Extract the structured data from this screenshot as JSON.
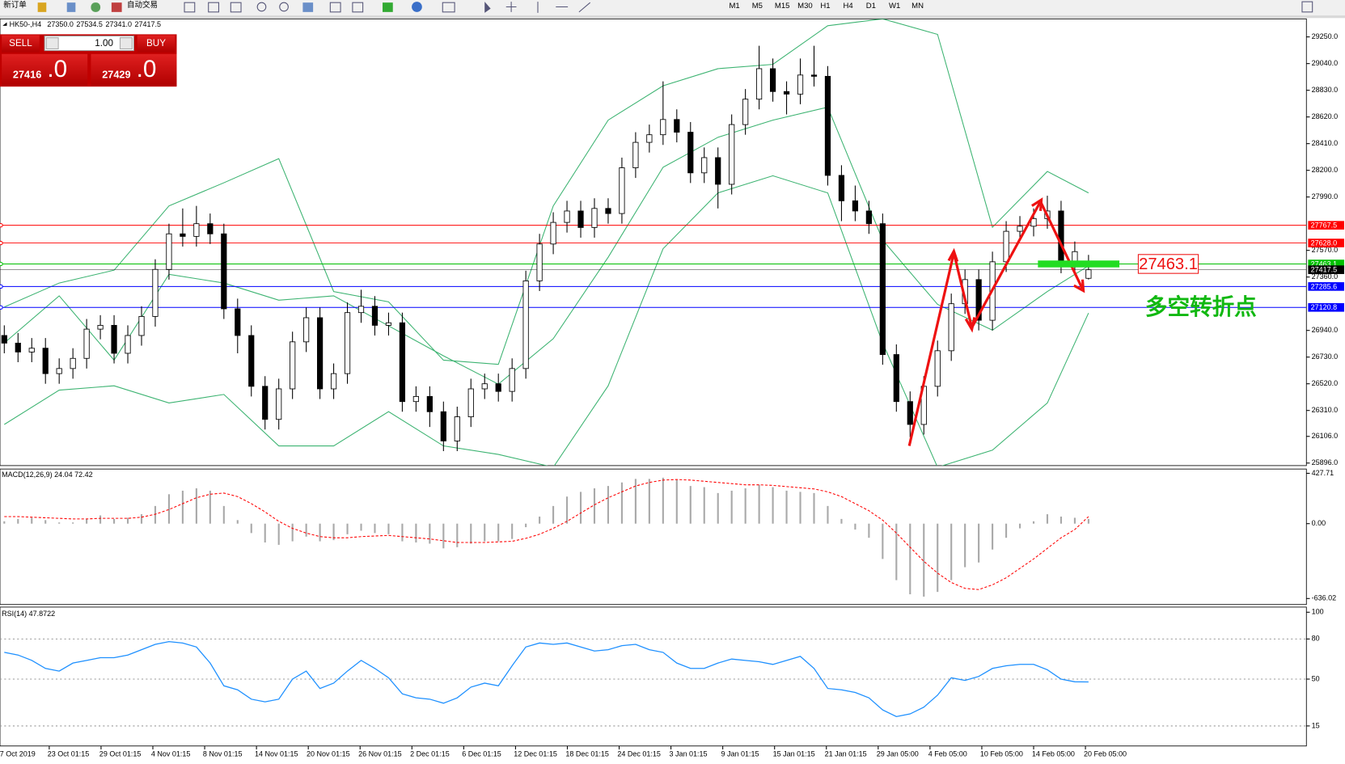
{
  "toolbar": {
    "buttons": [
      "新订单",
      "自动交易"
    ],
    "timeframes": [
      "M1",
      "M5",
      "M15",
      "M30",
      "H1",
      "H4",
      "D1",
      "W1",
      "MN"
    ]
  },
  "trade_panel": {
    "sell": "SELL",
    "buy": "BUY",
    "lots": "1.00",
    "bid_main": "27416",
    "bid_frac": ".0",
    "ask_main": "27429",
    "ask_frac": ".0"
  },
  "chart_data": [
    {
      "type": "candlestick",
      "title": "HK50-,H4",
      "ohlc_header": [
        "27350.0",
        "27534.5",
        "27341.0",
        "27417.5"
      ],
      "x_labels": [
        "17 Oct 2019",
        "23 Oct 01:15",
        "29 Oct 01:15",
        "4 Nov 01:15",
        "8 Nov 01:15",
        "14 Nov 01:15",
        "20 Nov 01:15",
        "26 Nov 01:15",
        "2 Dec 01:15",
        "6 Dec 01:15",
        "12 Dec 01:15",
        "18 Dec 01:15",
        "24 Dec 01:15",
        "3 Jan 01:15",
        "9 Jan 01:15",
        "15 Jan 01:15",
        "21 Jan 01:15",
        "29 Jan 05:00",
        "4 Feb 05:00",
        "10 Feb 05:00",
        "14 Feb 05:00",
        "20 Feb 05:00"
      ],
      "open": [
        26900,
        26840,
        26770,
        26800,
        26600,
        26640,
        26720,
        26950,
        26980,
        26760,
        26900,
        27050,
        27420,
        27700,
        27680,
        27780,
        27700,
        27110,
        26900,
        26500,
        26240,
        26480,
        26850,
        27040,
        26480,
        26600,
        27080,
        27130,
        26980,
        27000,
        26380,
        26420,
        26300,
        26070,
        26260,
        26480,
        26520,
        26460,
        26640,
        27330,
        27620,
        27790,
        27880,
        27750,
        27900,
        27860,
        28220,
        28420,
        28480,
        28600,
        28500,
        28180,
        28300,
        28090,
        28560,
        28760,
        29000,
        28820,
        28800,
        28950,
        28940,
        28160,
        27960,
        27880,
        27780,
        26750,
        26380,
        26200,
        26500,
        26780,
        27150,
        27340,
        27020,
        27480,
        27720,
        27760,
        27820,
        27880,
        27470,
        27350
      ],
      "high": [
        26980,
        26920,
        26880,
        26880,
        26720,
        26800,
        27030,
        27060,
        27060,
        26980,
        27130,
        27500,
        27780,
        27900,
        27920,
        27860,
        27780,
        27190,
        26980,
        26580,
        26560,
        26930,
        27120,
        27120,
        26680,
        27160,
        27260,
        27210,
        27080,
        27080,
        26500,
        26500,
        26380,
        26340,
        26560,
        26600,
        26600,
        26720,
        27410,
        27700,
        27870,
        27960,
        27960,
        27980,
        27980,
        28300,
        28500,
        28560,
        28900,
        28680,
        28580,
        28380,
        28380,
        28640,
        28840,
        29180,
        29080,
        28900,
        29080,
        29180,
        29020,
        28240,
        28080,
        27960,
        27860,
        26830,
        26460,
        26580,
        26860,
        27230,
        27420,
        27420,
        27560,
        27800,
        27840,
        27900,
        28000,
        27960,
        27640,
        27534.5
      ],
      "low": [
        26760,
        26690,
        26690,
        26520,
        26520,
        26560,
        26640,
        26870,
        26680,
        26680,
        26820,
        26970,
        27340,
        27600,
        27600,
        27620,
        27030,
        26760,
        26420,
        26160,
        26160,
        26400,
        26770,
        26400,
        26400,
        26520,
        27000,
        26900,
        26900,
        26300,
        26300,
        26180,
        25990,
        25990,
        26180,
        26400,
        26380,
        26380,
        26560,
        27250,
        27540,
        27710,
        27670,
        27670,
        27780,
        27780,
        28140,
        28340,
        28400,
        28420,
        28100,
        28100,
        27900,
        28010,
        28480,
        28680,
        28740,
        28640,
        28720,
        28860,
        28080,
        27800,
        27800,
        27700,
        26670,
        26300,
        26100,
        26120,
        26420,
        26700,
        27070,
        26940,
        26940,
        27400,
        27640,
        27680,
        27740,
        27390,
        27390,
        27341
      ],
      "close": [
        26840,
        26770,
        26800,
        26600,
        26640,
        26720,
        26950,
        26980,
        26760,
        26900,
        27050,
        27420,
        27700,
        27680,
        27780,
        27700,
        27110,
        26900,
        26500,
        26240,
        26480,
        26850,
        27040,
        26480,
        26600,
        27080,
        27130,
        26980,
        27000,
        26380,
        26420,
        26300,
        26070,
        26260,
        26480,
        26520,
        26460,
        26640,
        27330,
        27620,
        27790,
        27880,
        27750,
        27900,
        27860,
        28220,
        28420,
        28480,
        28600,
        28500,
        28180,
        28300,
        28090,
        28560,
        28760,
        29000,
        28820,
        28800,
        28950,
        28940,
        28160,
        27960,
        27880,
        27780,
        26750,
        26380,
        26200,
        26500,
        26780,
        27150,
        27340,
        27020,
        27480,
        27720,
        27760,
        27820,
        27880,
        27470,
        27560,
        27417.5
      ],
      "bands": {
        "color": "#3cb371",
        "x": [
          0,
          4,
          8,
          12,
          16,
          20,
          24,
          28,
          32,
          36,
          40,
          44,
          48,
          52,
          56,
          60,
          64,
          68,
          72,
          76,
          79
        ],
        "upper": [
          27124,
          27313,
          27414,
          27920,
          28102,
          28292,
          27246,
          27165,
          26706,
          26673,
          27920,
          28595,
          28865,
          29000,
          29034,
          29338,
          29392,
          29270,
          27752,
          28191,
          28022
        ],
        "middle": [
          26841,
          27212,
          26706,
          27381,
          27313,
          27178,
          27212,
          26976,
          26740,
          26517,
          26875,
          27516,
          28224,
          28460,
          28595,
          28697,
          27651,
          27145,
          26942,
          27246,
          27448
        ],
        "lower": [
          26200,
          26470,
          26504,
          26369,
          26436,
          26031,
          26031,
          26301,
          26031,
          25964,
          25863,
          26504,
          27583,
          28022,
          28157,
          28022,
          26841,
          25863,
          25998,
          26369,
          27077
        ]
      },
      "hlines": [
        {
          "value": 27767.5,
          "label": "27767.5",
          "color": "#ff0000"
        },
        {
          "value": 27628.0,
          "label": "27628.0",
          "color": "#ff0000"
        },
        {
          "value": 27463.1,
          "label": "27463.1",
          "color": "#00c000"
        },
        {
          "value": 27417.5,
          "label": "27417.5",
          "color": "#000000"
        },
        {
          "value": 27285.6,
          "label": "27285.6",
          "color": "#0000ff"
        },
        {
          "value": 27120.8,
          "label": "27120.8",
          "color": "#0000ff"
        }
      ],
      "annotation": {
        "value": 27463.1,
        "label": "27463.1",
        "note": "多空转折点"
      },
      "ylim": [
        25876,
        29392
      ],
      "yticks": [
        {
          "value": 29250,
          "label": "29250.0"
        },
        {
          "value": 29040,
          "label": "29040.0"
        },
        {
          "value": 28830,
          "label": "28830.0"
        },
        {
          "value": 28620,
          "label": "28620.0"
        },
        {
          "value": 28410,
          "label": "28410.0"
        },
        {
          "value": 28200,
          "label": "28200.0"
        },
        {
          "value": 27990,
          "label": "27990.0"
        },
        {
          "value": 27570,
          "label": "27570.0"
        },
        {
          "value": 27360,
          "label": "27360.0"
        },
        {
          "value": 26940,
          "label": "26940.0"
        },
        {
          "value": 26730,
          "label": "26730.0"
        },
        {
          "value": 26520,
          "label": "26520.0"
        },
        {
          "value": 26310,
          "label": "26310.0"
        },
        {
          "value": 26106,
          "label": "26106.0"
        },
        {
          "value": 25896,
          "label": "25896.0"
        }
      ]
    },
    {
      "type": "macd",
      "title": "MACD(12,26,9) 24.04 72.42",
      "histogram_color": "#a9a9a9",
      "signal_color": "#ff0000",
      "histogram": [
        20,
        40,
        50,
        30,
        10,
        10,
        40,
        70,
        40,
        50,
        80,
        150,
        250,
        280,
        300,
        280,
        150,
        30,
        -80,
        -160,
        -180,
        -150,
        -110,
        -150,
        -140,
        -90,
        -60,
        -80,
        -90,
        -150,
        -160,
        -170,
        -210,
        -200,
        -170,
        -150,
        -150,
        -130,
        -30,
        60,
        150,
        230,
        270,
        300,
        320,
        350,
        380,
        380,
        390,
        370,
        320,
        310,
        260,
        280,
        300,
        330,
        310,
        280,
        270,
        260,
        150,
        40,
        -50,
        -120,
        -300,
        -480,
        -600,
        -620,
        -580,
        -480,
        -370,
        -330,
        -220,
        -120,
        -40,
        20,
        80,
        60,
        50,
        40
      ],
      "signal": [
        60,
        60,
        55,
        50,
        45,
        40,
        40,
        45,
        45,
        45,
        55,
        80,
        120,
        170,
        220,
        250,
        260,
        230,
        170,
        100,
        20,
        -40,
        -80,
        -110,
        -120,
        -120,
        -110,
        -105,
        -100,
        -110,
        -120,
        -130,
        -145,
        -160,
        -160,
        -160,
        -155,
        -150,
        -125,
        -90,
        -40,
        20,
        90,
        160,
        220,
        270,
        320,
        350,
        370,
        375,
        370,
        360,
        350,
        340,
        330,
        330,
        325,
        315,
        305,
        295,
        270,
        230,
        170,
        110,
        30,
        -80,
        -200,
        -320,
        -420,
        -500,
        -550,
        -560,
        -520,
        -460,
        -380,
        -300,
        -210,
        -120,
        -50,
        60
      ],
      "ylim": [
        -687,
        464
      ],
      "yticks": [
        {
          "value": 427.71,
          "label": "427.71"
        },
        {
          "value": 0,
          "label": "0.00"
        },
        {
          "value": -636.02,
          "label": "-636.02"
        }
      ]
    },
    {
      "type": "line",
      "title": "RSI(14) 47.8722",
      "color": "#1e90ff",
      "grid": true,
      "values": [
        70,
        68,
        64,
        58,
        56,
        62,
        64,
        66,
        66,
        68,
        72,
        76,
        78,
        77,
        74,
        62,
        45,
        42,
        35,
        33,
        35,
        50,
        56,
        43,
        47,
        56,
        64,
        58,
        51,
        39,
        36,
        35,
        32,
        36,
        44,
        47,
        45,
        60,
        74,
        77,
        76,
        77,
        74,
        71,
        72,
        75,
        76,
        72,
        70,
        62,
        58,
        58,
        62,
        65,
        64,
        63,
        61,
        64,
        67,
        58,
        43,
        42,
        40,
        36,
        27,
        22,
        24,
        29,
        38,
        51,
        49,
        52,
        58,
        60,
        61,
        61,
        57,
        50,
        48,
        47.9
      ],
      "ylim": [
        0,
        100
      ],
      "yticks": [
        100,
        80,
        50,
        15
      ]
    }
  ]
}
